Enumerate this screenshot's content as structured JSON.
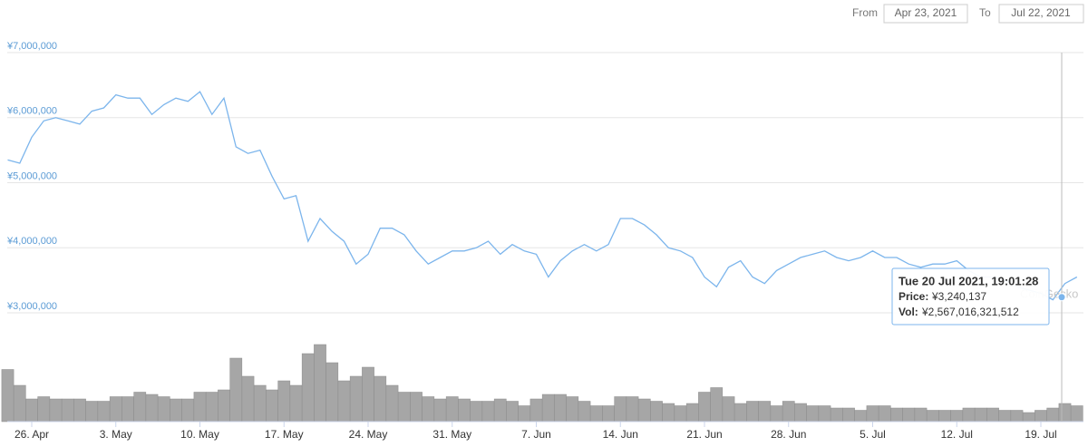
{
  "header": {
    "from_label": "From",
    "from_date": "Apr 23, 2021",
    "to_label": "To",
    "to_date": "Jul 22, 2021"
  },
  "chart_data": {
    "type": "line",
    "color": "#7cb5ec",
    "grid": true,
    "watermark": "CoinGecko",
    "ylim": [
      3000000,
      7000000
    ],
    "yticks": [
      {
        "value": 3000000,
        "label": "¥3,000,000"
      },
      {
        "value": 4000000,
        "label": "¥4,000,000"
      },
      {
        "value": 5000000,
        "label": "¥5,000,000"
      },
      {
        "value": 6000000,
        "label": "¥6,000,000"
      },
      {
        "value": 7000000,
        "label": "¥7,000,000"
      }
    ],
    "categories": [
      null,
      null,
      "26. Apr",
      null,
      null,
      null,
      null,
      null,
      null,
      "3. May",
      null,
      null,
      null,
      null,
      null,
      null,
      "10. May",
      null,
      null,
      null,
      null,
      null,
      null,
      "17. May",
      null,
      null,
      null,
      null,
      null,
      null,
      "24. May",
      null,
      null,
      null,
      null,
      null,
      null,
      "31. May",
      null,
      null,
      null,
      null,
      null,
      null,
      "7. Jun",
      null,
      null,
      null,
      null,
      null,
      null,
      "14. Jun",
      null,
      null,
      null,
      null,
      null,
      null,
      "21. Jun",
      null,
      null,
      null,
      null,
      null,
      null,
      "28. Jun",
      null,
      null,
      null,
      null,
      null,
      null,
      "5. Jul",
      null,
      null,
      null,
      null,
      null,
      null,
      "12. Jul",
      null,
      null,
      null,
      null,
      null,
      null,
      "19. Jul",
      null,
      null,
      null
    ],
    "values": [
      5350000,
      5300000,
      5700000,
      5950000,
      6000000,
      5950000,
      5900000,
      6100000,
      6150000,
      6350000,
      6300000,
      6300000,
      6050000,
      6200000,
      6300000,
      6250000,
      6400000,
      6050000,
      6300000,
      5550000,
      5450000,
      5500000,
      5100000,
      4750000,
      4800000,
      4100000,
      4450000,
      4250000,
      4100000,
      3750000,
      3900000,
      4300000,
      4300000,
      4200000,
      3950000,
      3750000,
      3850000,
      3950000,
      3950000,
      4000000,
      4100000,
      3900000,
      4050000,
      3950000,
      3900000,
      3550000,
      3800000,
      3950000,
      4050000,
      3950000,
      4050000,
      4450000,
      4450000,
      4350000,
      4200000,
      4000000,
      3950000,
      3850000,
      3550000,
      3400000,
      3700000,
      3800000,
      3550000,
      3450000,
      3650000,
      3750000,
      3850000,
      3900000,
      3950000,
      3850000,
      3800000,
      3850000,
      3950000,
      3850000,
      3850000,
      3750000,
      3700000,
      3750000,
      3750000,
      3800000,
      3650000,
      3550000,
      3550000,
      3500000,
      3400000,
      3350000,
      3300000,
      3200000,
      3450000,
      3550000
    ],
    "volume_color": "#a6a6a6",
    "volume_values": [
      11500000000000,
      8000000000000,
      5000000000000,
      5500000000000,
      5000000000000,
      5000000000000,
      5000000000000,
      4500000000000,
      4500000000000,
      5500000000000,
      5500000000000,
      6500000000000,
      6000000000000,
      5500000000000,
      5000000000000,
      5000000000000,
      6500000000000,
      6500000000000,
      7000000000000,
      14000000000000,
      10000000000000,
      8000000000000,
      7000000000000,
      9000000000000,
      8000000000000,
      15000000000000,
      17000000000000,
      13000000000000,
      9000000000000,
      10000000000000,
      12000000000000,
      10000000000000,
      8000000000000,
      6500000000000,
      6500000000000,
      5500000000000,
      5000000000000,
      5500000000000,
      5000000000000,
      4500000000000,
      4500000000000,
      5000000000000,
      4500000000000,
      3500000000000,
      5000000000000,
      6000000000000,
      6000000000000,
      5500000000000,
      4500000000000,
      3500000000000,
      3500000000000,
      5500000000000,
      5500000000000,
      5000000000000,
      4500000000000,
      4000000000000,
      3500000000000,
      4000000000000,
      6500000000000,
      7500000000000,
      5500000000000,
      4000000000000,
      4500000000000,
      4500000000000,
      3500000000000,
      4500000000000,
      4000000000000,
      3500000000000,
      3500000000000,
      3000000000000,
      3000000000000,
      2500000000000,
      3500000000000,
      3500000000000,
      3000000000000,
      3000000000000,
      3000000000000,
      2500000000000,
      2500000000000,
      2500000000000,
      3000000000000,
      3000000000000,
      3000000000000,
      2500000000000,
      2500000000000,
      2000000000000,
      2500000000000,
      3000000000000,
      4000000000000,
      3500000000000
    ],
    "tooltip": {
      "x": "Tue 20 Jul 2021, 19:01:28",
      "price_name": "Price:",
      "price": 3240137,
      "price_label": "¥3,240,137",
      "volume_name": "Vol:",
      "volume": 2567016321512,
      "volume_label": "¥2,567,016,321,512"
    }
  }
}
